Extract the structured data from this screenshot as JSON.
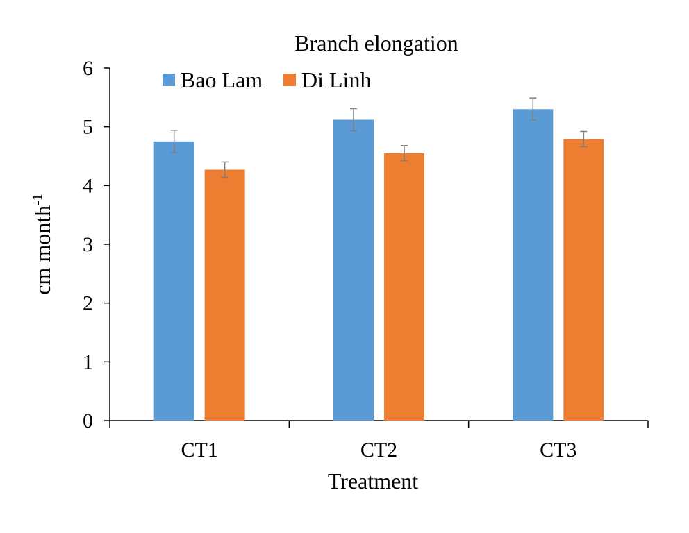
{
  "chart_data": {
    "type": "bar",
    "title": "Branch elongation",
    "xlabel": "Treatment",
    "ylabel": "cm  month",
    "ylabel_superscript": "-1",
    "categories": [
      "CT1",
      "CT2",
      "CT3"
    ],
    "ylim": [
      0,
      6
    ],
    "yticks": [
      "0",
      "1",
      "2",
      "3",
      "4",
      "5",
      "6"
    ],
    "grid": false,
    "legend_position": "top-left",
    "series": [
      {
        "name": "Bao Lam",
        "color": "#5B9BD5",
        "values": [
          4.75,
          5.12,
          5.3
        ],
        "errors": [
          0.19,
          0.19,
          0.19
        ]
      },
      {
        "name": "Di Linh",
        "color": "#ED7D31",
        "values": [
          4.27,
          4.55,
          4.79
        ],
        "errors": [
          0.13,
          0.13,
          0.13
        ]
      }
    ]
  }
}
